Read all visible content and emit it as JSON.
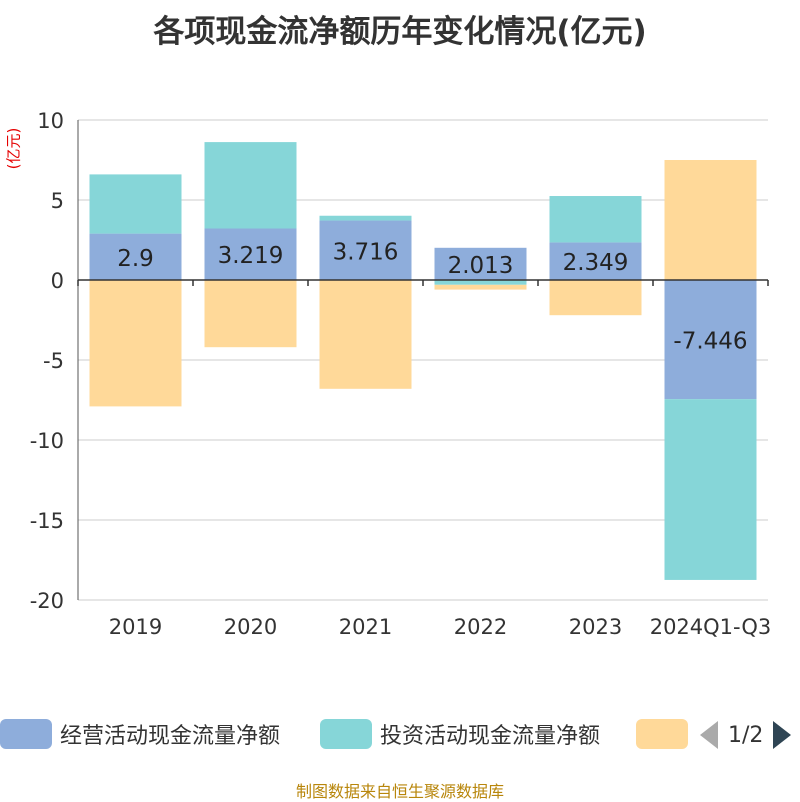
{
  "title": "各项现金流净额历年变化情况(亿元)",
  "unit_label": "(亿元)",
  "source": "制图数据来自恒生聚源数据库",
  "legend": {
    "items": [
      {
        "label": "经营活动现金流量净额",
        "color": "#8eaddb"
      },
      {
        "label": "投资活动现金流量净额",
        "color": "#86d6d8"
      },
      {
        "label": "",
        "color": "#ffd999"
      }
    ],
    "page": "1/2",
    "prev_icon": "triangle-left-icon",
    "next_icon": "triangle-right-icon"
  },
  "chart_data": {
    "type": "bar",
    "stacked": true,
    "title": "各项现金流净额历年变化情况(亿元)",
    "ylabel": "(亿元)",
    "ylim": [
      -20,
      10
    ],
    "yticks": [
      10,
      5,
      0,
      -5,
      -10,
      -15,
      -20
    ],
    "categories": [
      "2019",
      "2020",
      "2021",
      "2022",
      "2023",
      "2024Q1-Q3"
    ],
    "series": [
      {
        "name": "经营活动现金流量净额",
        "color": "#8eaddb",
        "values": [
          2.9,
          3.219,
          3.716,
          2.013,
          2.349,
          -7.446
        ],
        "labels_shown": true
      },
      {
        "name": "投资活动现金流量净额",
        "color": "#86d6d8",
        "values": [
          3.7,
          5.4,
          0.3,
          -0.3,
          2.9,
          -11.3
        ]
      },
      {
        "name": "",
        "color": "#ffd999",
        "values": [
          -7.9,
          -4.2,
          -6.8,
          -0.3,
          -2.2,
          7.5
        ]
      }
    ],
    "data_labels": [
      "2.9",
      "3.219",
      "3.716",
      "2.013",
      "2.349",
      "-7.446"
    ]
  }
}
